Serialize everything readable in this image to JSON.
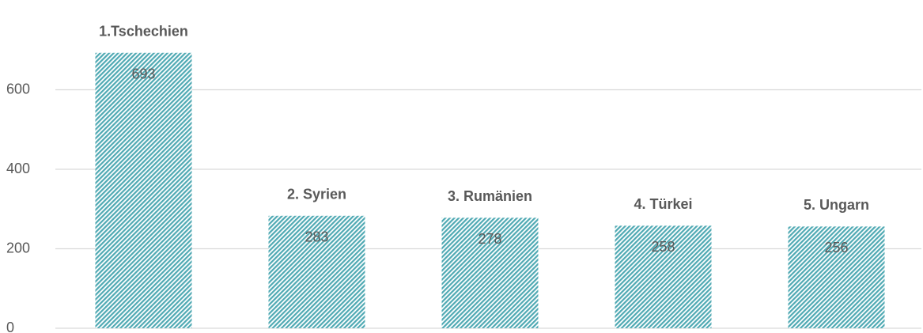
{
  "chart_data": {
    "type": "bar",
    "categories": [
      "1.Tschechien",
      "2. Syrien",
      "3. Rumänien",
      "4. Türkei",
      "5. Ungarn"
    ],
    "values": [
      693,
      283,
      278,
      258,
      256
    ],
    "color": "#4fa9b3",
    "ylim": [
      0,
      800
    ],
    "yticks": [
      0,
      200,
      400,
      600
    ],
    "grid": true
  }
}
